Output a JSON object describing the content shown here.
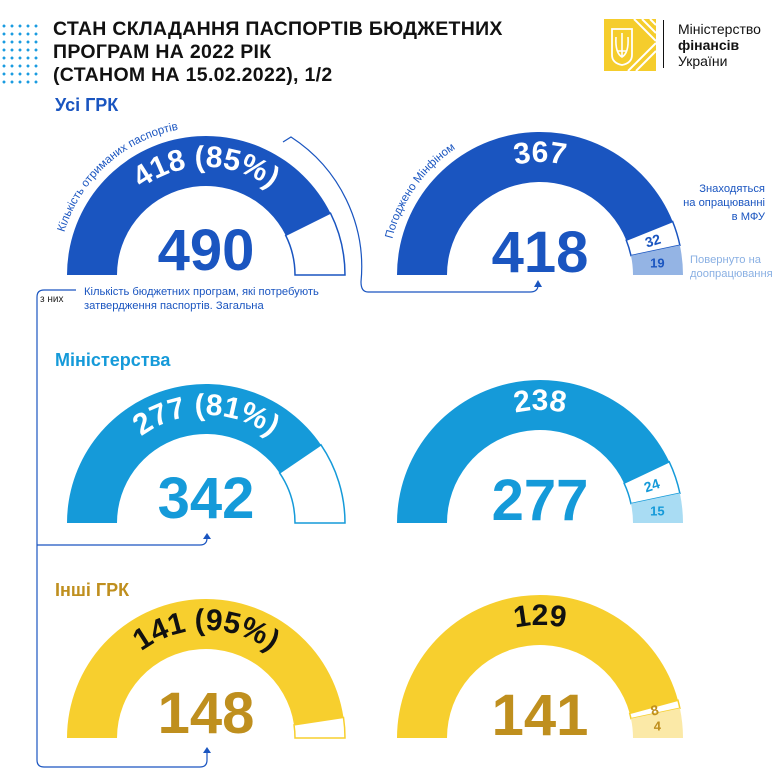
{
  "header": {
    "title_lines": [
      "СТАН СКЛАДАННЯ ПАСПОРТІВ БЮДЖЕТНИХ",
      "ПРОГРАМ НА 2022 РІК",
      "(СТАНОМ НА 15.02.2022), 1/2"
    ],
    "logo_lines": [
      "Міністерство",
      "фінансів",
      "України"
    ]
  },
  "sections": {
    "all": "Усі ГРК",
    "ministries": "Міністерства",
    "others": "Інші ГРК"
  },
  "notes": {
    "received_label": "Кількість отриманих паспортів",
    "approved_label": "Погоджено Мінфіном",
    "total_desc_1": "Кількість бюджетних програм, які потребують",
    "total_desc_2": "затвердження паспортів. Загальна",
    "of_them": "з них",
    "processing_1": "Знаходяться",
    "processing_2": "на опрацюванні",
    "processing_3": "в МФУ",
    "returned_1": "Повернуто на",
    "returned_2": "доопрацювання"
  },
  "colors": {
    "all_main": "#1a55c0",
    "all_light": "#94b4e4",
    "min_main": "#159ad9",
    "min_light": "#a9dcf3",
    "oth_main": "#f7cf2e",
    "oth_light": "#fbe9a7",
    "oth_text": "#bf8f1e"
  },
  "chart_data": [
    {
      "type": "gauge",
      "group": "Усі ГРК",
      "title": "Кількість отриманих паспортів",
      "total": 490,
      "value": 418,
      "percent": 85,
      "value_label": "418 (85%)",
      "total_label": "490"
    },
    {
      "type": "gauge",
      "group": "Усі ГРК",
      "title": "Погоджено Мінфіном",
      "total": 418,
      "segments": [
        {
          "name": "Погоджено Мінфіном",
          "value": 367
        },
        {
          "name": "Знаходяться на опрацюванні в МФУ",
          "value": 32
        },
        {
          "name": "Повернуто на доопрацювання",
          "value": 19
        }
      ],
      "total_label": "418"
    },
    {
      "type": "gauge",
      "group": "Міністерства",
      "total": 342,
      "value": 277,
      "percent": 81,
      "value_label": "277 (81%)",
      "total_label": "342"
    },
    {
      "type": "gauge",
      "group": "Міністерства",
      "total": 277,
      "segments": [
        {
          "name": "Погоджено Мінфіном",
          "value": 238
        },
        {
          "name": "Знаходяться на опрацюванні в МФУ",
          "value": 24
        },
        {
          "name": "Повернуто на доопрацювання",
          "value": 15
        }
      ],
      "total_label": "277"
    },
    {
      "type": "gauge",
      "group": "Інші ГРК",
      "total": 148,
      "value": 141,
      "percent": 95,
      "value_label": "141 (95%)",
      "total_label": "148"
    },
    {
      "type": "gauge",
      "group": "Інші ГРК",
      "total": 141,
      "segments": [
        {
          "name": "Погоджено Мінфіном",
          "value": 129
        },
        {
          "name": "Знаходяться на опрацюванні в МФУ",
          "value": 8
        },
        {
          "name": "Повернуто на доопрацювання",
          "value": 4
        }
      ],
      "total_label": "141"
    }
  ]
}
